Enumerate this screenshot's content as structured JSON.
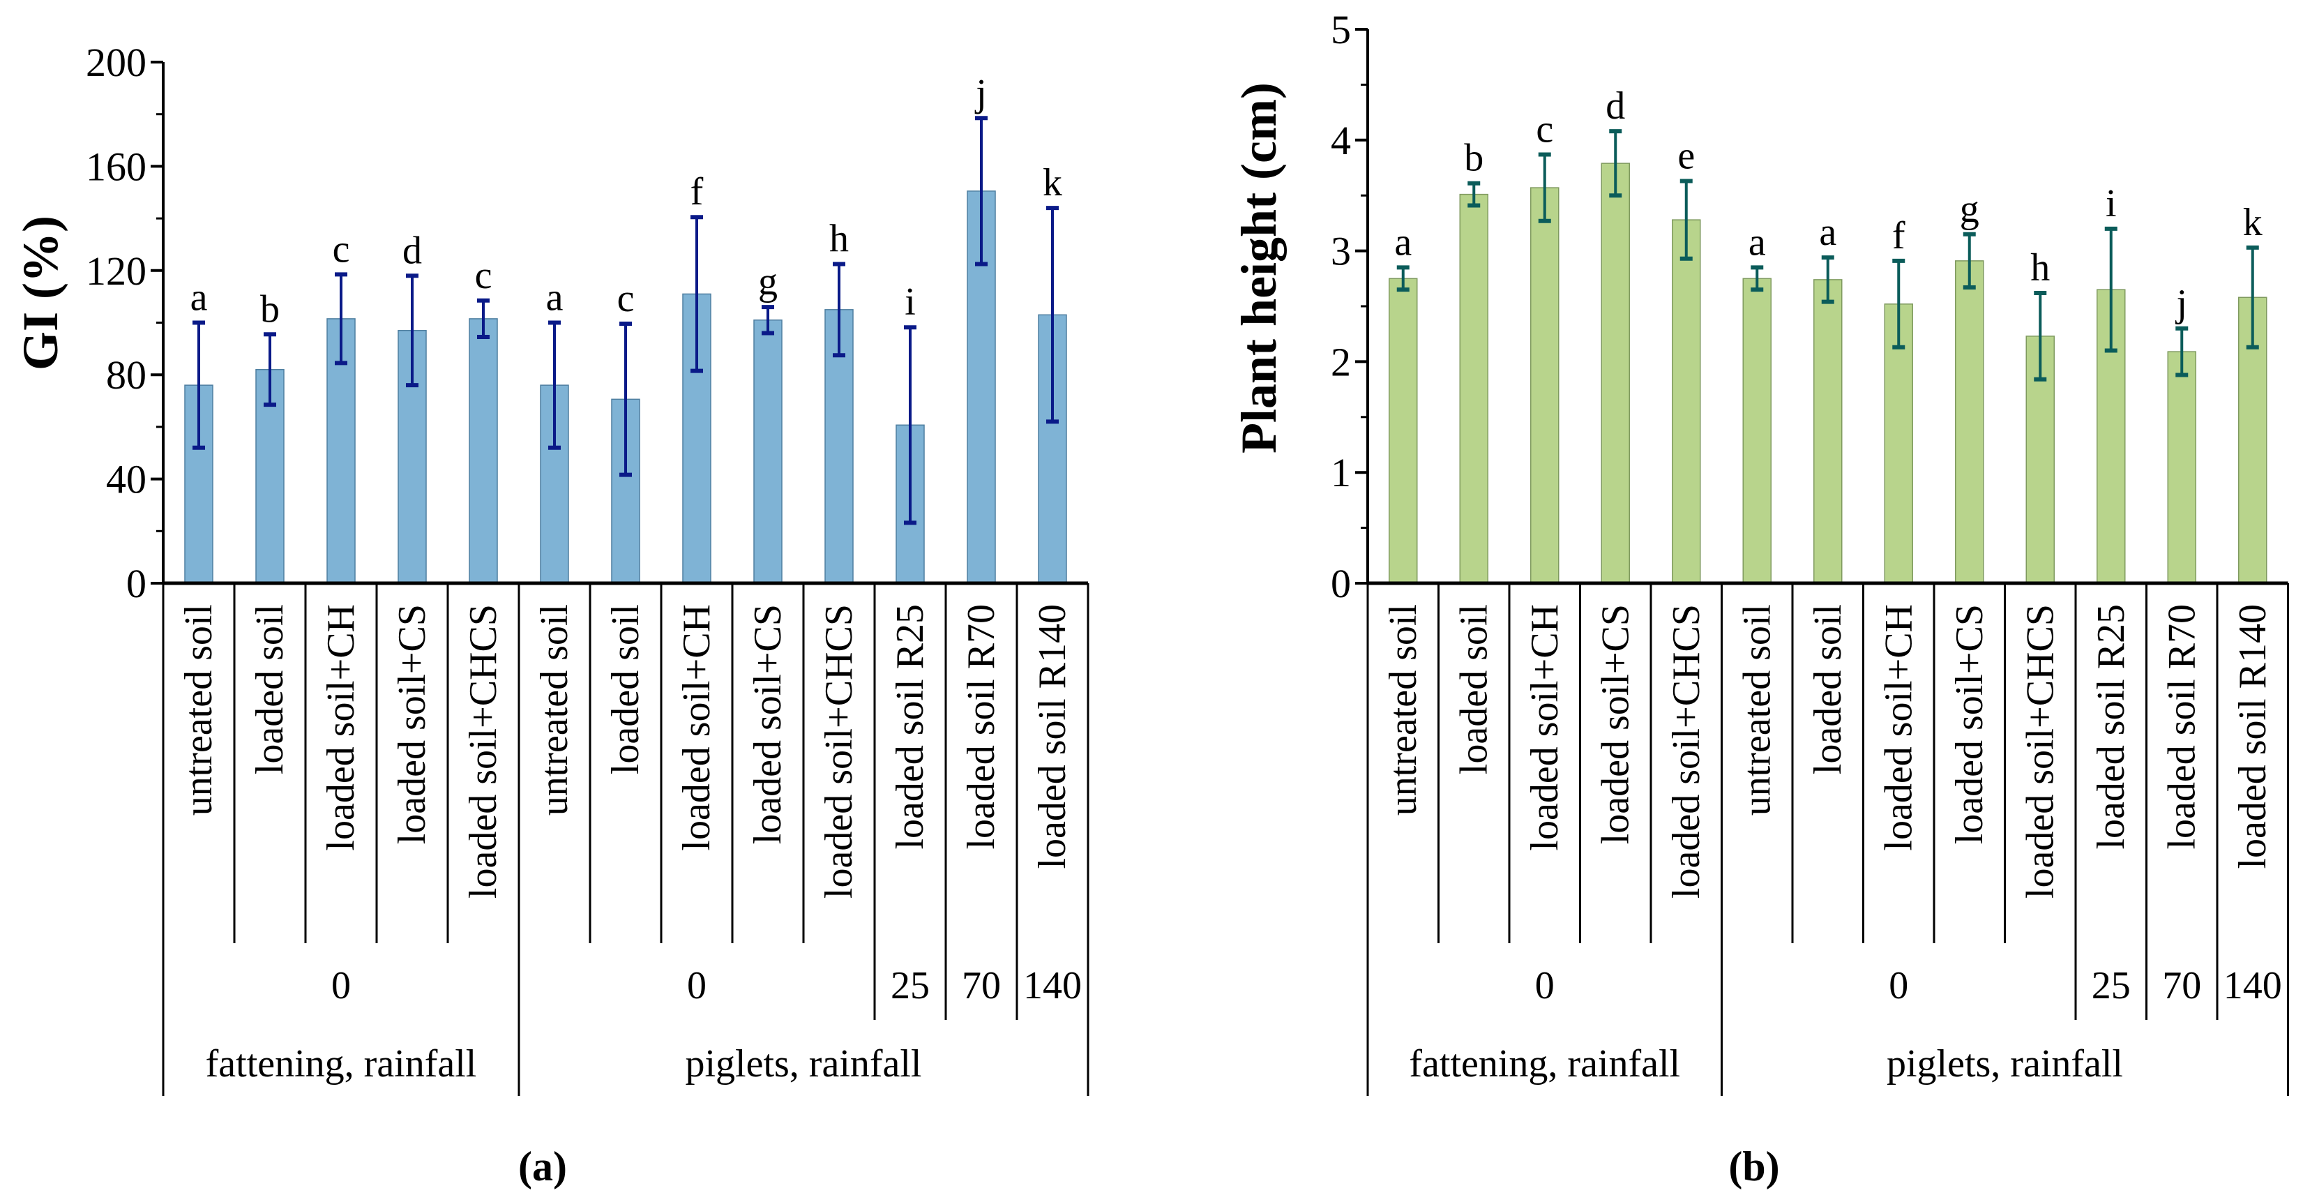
{
  "chart_data": [
    {
      "type": "bar",
      "panel": "(a)",
      "ylabel": "GI (%)",
      "ylim": [
        0,
        200
      ],
      "yticks": [
        0,
        40,
        80,
        120,
        160,
        200
      ],
      "minor_step": 20,
      "colors": {
        "bar": "#7fb3d5",
        "bar_edge": "#4f7fa0",
        "error": "#0a1a88"
      },
      "categories": [
        "untreated soil",
        "loaded soil",
        "loaded soil+CH",
        "loaded soil+CS",
        "loaded soil+CHCS",
        "untreated soil",
        "loaded soil",
        "loaded soil+CH",
        "loaded soil+CS",
        "loaded soil+CHCS",
        "loaded soil R25",
        "loaded soil R70",
        "loaded soil R140"
      ],
      "values": [
        76,
        82,
        101.5,
        97,
        101.5,
        76,
        70.6,
        111,
        101,
        105,
        60.7,
        150.5,
        103
      ],
      "errors": [
        24,
        13.5,
        17,
        21,
        7,
        24,
        29,
        29.5,
        5,
        17.5,
        37.5,
        28,
        41
      ],
      "significance": [
        "a",
        "b",
        "c",
        "d",
        "c",
        "a",
        "c",
        "f",
        "g",
        "h",
        "i",
        "j",
        "k"
      ],
      "dose_groups": [
        {
          "label": "0",
          "span": 5
        },
        {
          "label": "0",
          "span": 5
        },
        {
          "label": "25",
          "span": 1
        },
        {
          "label": "70",
          "span": 1
        },
        {
          "label": "140",
          "span": 1
        }
      ],
      "source_groups": [
        {
          "label": "fattening, rainfall",
          "span": 5
        },
        {
          "label": "piglets, rainfall",
          "span": 8
        }
      ]
    },
    {
      "type": "bar",
      "panel": "(b)",
      "ylabel": "Plant height (cm)",
      "ylim": [
        0,
        5
      ],
      "yticks": [
        0,
        1,
        2,
        3,
        4,
        5
      ],
      "minor_step": 0.5,
      "colors": {
        "bar": "#b8d48c",
        "bar_edge": "#7f9a5f",
        "error": "#0b5c5a"
      },
      "categories": [
        "untreated soil",
        "loaded soil",
        "loaded soil+CH",
        "loaded soil+CS",
        "loaded soil+CHCS",
        "untreated soil",
        "loaded soil",
        "loaded soil+CH",
        "loaded soil+CS",
        "loaded soil+CHCS",
        "loaded soil R25",
        "loaded soil R70",
        "loaded soil R140"
      ],
      "values": [
        2.75,
        3.51,
        3.57,
        3.79,
        3.28,
        2.75,
        2.74,
        2.52,
        2.91,
        2.23,
        2.65,
        2.09,
        2.58
      ],
      "errors": [
        0.1,
        0.1,
        0.3,
        0.29,
        0.35,
        0.1,
        0.2,
        0.39,
        0.24,
        0.39,
        0.55,
        0.21,
        0.45
      ],
      "significance": [
        "a",
        "b",
        "c",
        "d",
        "e",
        "a",
        "a",
        "f",
        "g",
        "h",
        "i",
        "j",
        "k"
      ],
      "dose_groups": [
        {
          "label": "0",
          "span": 5
        },
        {
          "label": "0",
          "span": 5
        },
        {
          "label": "25",
          "span": 1
        },
        {
          "label": "70",
          "span": 1
        },
        {
          "label": "140",
          "span": 1
        }
      ],
      "source_groups": [
        {
          "label": "fattening, rainfall",
          "span": 5
        },
        {
          "label": "piglets, rainfall",
          "span": 8
        }
      ]
    }
  ]
}
